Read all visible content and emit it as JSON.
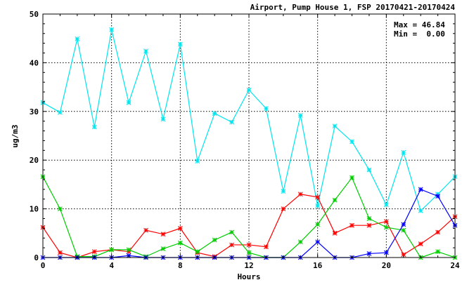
{
  "chart_data": {
    "type": "line",
    "title": "Airport, Pump House 1, FSP 20170421-20170424",
    "xlabel": "Hours",
    "ylabel": "ug/m3",
    "xlim": [
      0,
      24
    ],
    "ylim": [
      0,
      50
    ],
    "xticks": [
      "0",
      "4",
      "8",
      "12",
      "16",
      "20",
      "24"
    ],
    "yticks": [
      "0",
      "10",
      "20",
      "30",
      "40",
      "50"
    ],
    "grid": true,
    "stats": {
      "max": "Max = 46.84",
      "min": "Min =  0.00"
    },
    "x": [
      0,
      1,
      2,
      3,
      4,
      5,
      6,
      7,
      8,
      9,
      10,
      11,
      12,
      13,
      14,
      15,
      16,
      17,
      18,
      19,
      20,
      21,
      22,
      23,
      24
    ],
    "series": [
      {
        "color": "#00e5ee",
        "values": [
          31.8,
          29.8,
          44.9,
          26.8,
          46.8,
          31.8,
          42.4,
          28.4,
          43.8,
          19.8,
          29.6,
          27.8,
          34.4,
          30.6,
          13.6,
          29.2,
          10.6,
          27.0,
          23.8,
          18.0,
          10.8,
          21.6,
          9.6,
          13.0,
          16.6
        ]
      },
      {
        "color": "#ff0000",
        "values": [
          6.2,
          1.0,
          0.0,
          1.2,
          1.6,
          1.2,
          5.6,
          4.8,
          6.0,
          1.0,
          0.2,
          2.6,
          2.6,
          2.2,
          10.0,
          13.0,
          12.4,
          5.0,
          6.6,
          6.6,
          7.4,
          0.6,
          2.8,
          5.2,
          8.4
        ]
      },
      {
        "color": "#00cc00",
        "values": [
          16.6,
          10.0,
          0.2,
          0.2,
          1.6,
          1.6,
          0.2,
          1.8,
          3.0,
          1.2,
          3.6,
          5.2,
          1.0,
          0.0,
          0.0,
          3.2,
          6.8,
          11.8,
          16.4,
          8.0,
          6.2,
          5.6,
          0.0,
          1.2,
          0.0
        ]
      },
      {
        "color": "#0000ff",
        "values": [
          0.0,
          0.0,
          0.0,
          0.0,
          0.0,
          0.4,
          0.0,
          0.0,
          0.0,
          0.0,
          0.0,
          0.0,
          0.0,
          0.0,
          0.0,
          0.0,
          3.2,
          0.0,
          0.0,
          0.8,
          1.0,
          6.8,
          14.0,
          12.6,
          6.6
        ]
      }
    ]
  }
}
